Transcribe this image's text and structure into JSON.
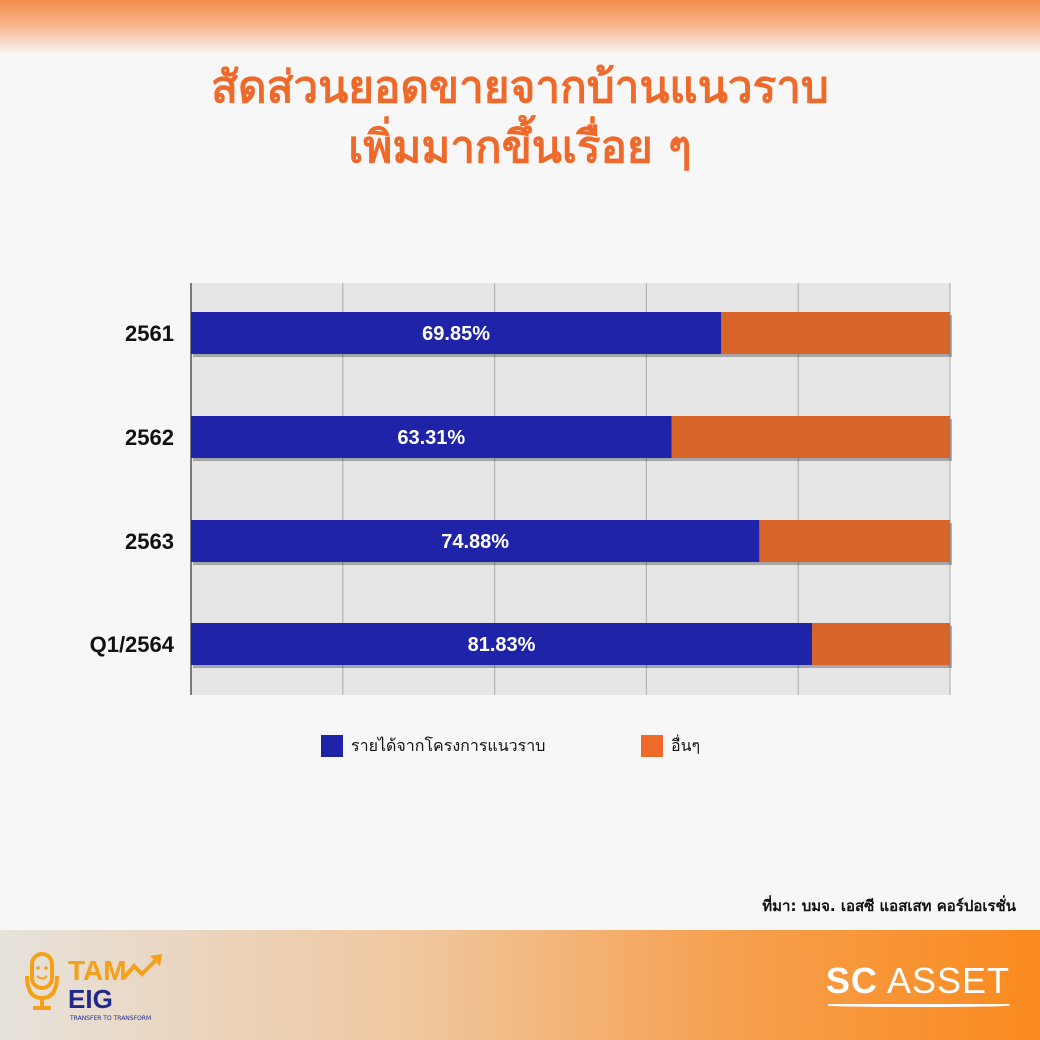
{
  "title": {
    "line1": "สัดส่วนยอดขายจากบ้านแนวราบ",
    "line2": "เพิ่มมากขึ้นเรื่อย ๆ"
  },
  "colors": {
    "title": "#ef6a2a",
    "lowrise": "#1f23a8",
    "other": "#d8642a",
    "plot_bg": "#e6e6e6",
    "grid": "#b4b4b4"
  },
  "chart_data": {
    "type": "bar",
    "orientation": "horizontal",
    "stacked": true,
    "categories": [
      "2561",
      "2562",
      "2563",
      "Q1/2564"
    ],
    "series": [
      {
        "name": "รายได้จากโครงการแนวราบ",
        "values": [
          69.85,
          63.31,
          74.88,
          81.83
        ],
        "labels": [
          "69.85%",
          "63.31%",
          "74.88%",
          "81.83%"
        ]
      },
      {
        "name": "อื่นๆ",
        "values": [
          30.15,
          36.69,
          25.12,
          18.17
        ]
      }
    ],
    "xlim": [
      0,
      100
    ],
    "grid": true,
    "legend": "bottom"
  },
  "legend": {
    "item1": "รายได้จากโครงการแนวราบ",
    "item2": "อื่นๆ"
  },
  "source": "ที่มา: บมจ. เอสซี แอสเสท คอร์ปอเรชั่น",
  "brand": {
    "left_main_top": "TAM",
    "left_main_bottom": "EIG",
    "left_tagline": "TRANSFER TO TRANSFORM",
    "right_sc": "SC",
    "right_asset": "ASSET"
  }
}
